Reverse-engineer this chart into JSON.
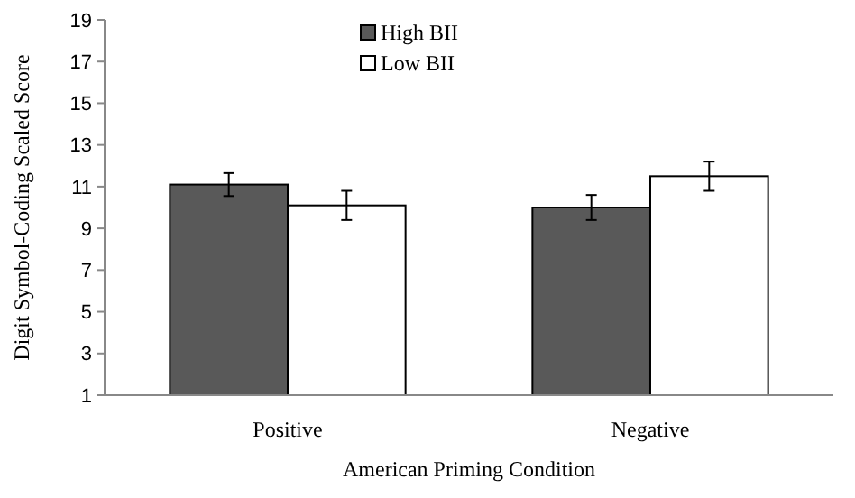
{
  "chart_data": {
    "type": "bar",
    "xlabel": "American Priming Condition",
    "ylabel": "Digit Symbol-Coding Scaled Score",
    "categories": [
      "Positive",
      "Negative"
    ],
    "series": [
      {
        "name": "High BII",
        "color": "#595959",
        "values": [
          11.1,
          10.0
        ],
        "errors": [
          0.55,
          0.6
        ]
      },
      {
        "name": "Low BII",
        "color": "#ffffff",
        "values": [
          10.1,
          11.5
        ],
        "errors": [
          0.7,
          0.7
        ]
      }
    ],
    "ylim": [
      1,
      19
    ],
    "yticks": [
      1,
      3,
      5,
      7,
      9,
      11,
      13,
      15,
      17,
      19
    ],
    "grid": false,
    "legend": "top"
  }
}
